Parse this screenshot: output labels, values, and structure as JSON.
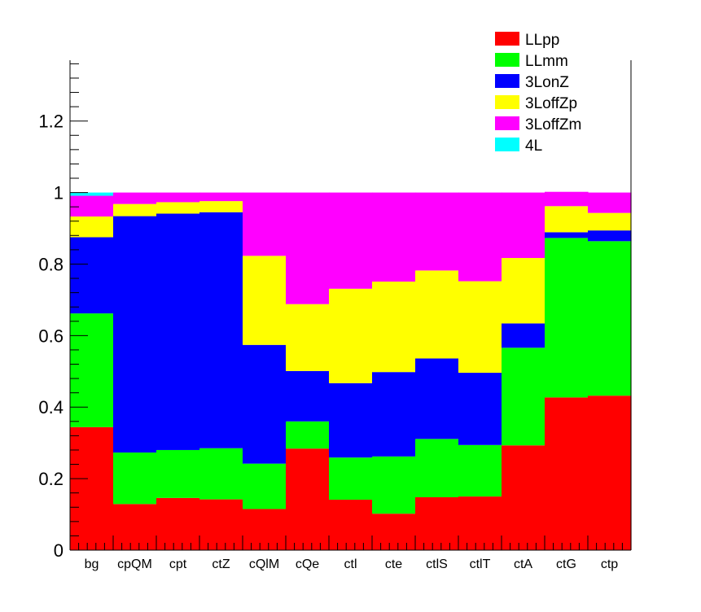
{
  "chart_data": {
    "type": "bar",
    "stacked": true,
    "categories": [
      "bg",
      "cpQM",
      "cpt",
      "ctZ",
      "cQlM",
      "cQe",
      "ctl",
      "cte",
      "ctlS",
      "ctlT",
      "ctA",
      "ctG",
      "ctp"
    ],
    "series": [
      {
        "name": "LLpp",
        "color": "#ff0000",
        "values": [
          0.344,
          0.129,
          0.146,
          0.142,
          0.115,
          0.284,
          0.141,
          0.102,
          0.148,
          0.15,
          0.293,
          0.427,
          0.432
        ]
      },
      {
        "name": "LLmm",
        "color": "#00ff00",
        "values": [
          0.318,
          0.144,
          0.134,
          0.143,
          0.127,
          0.076,
          0.118,
          0.16,
          0.163,
          0.144,
          0.273,
          0.446,
          0.432
        ]
      },
      {
        "name": "3LonZ",
        "color": "#0000ff",
        "values": [
          0.213,
          0.661,
          0.661,
          0.66,
          0.332,
          0.141,
          0.208,
          0.236,
          0.225,
          0.202,
          0.068,
          0.016,
          0.03
        ]
      },
      {
        "name": "3LoffZp",
        "color": "#ffff00",
        "values": [
          0.058,
          0.034,
          0.032,
          0.031,
          0.249,
          0.187,
          0.264,
          0.253,
          0.246,
          0.256,
          0.183,
          0.073,
          0.049
        ]
      },
      {
        "name": "3LoffZm",
        "color": "#ff00ff",
        "values": [
          0.058,
          0.032,
          0.027,
          0.024,
          0.177,
          0.312,
          0.269,
          0.249,
          0.218,
          0.248,
          0.183,
          0.04,
          0.057
        ]
      },
      {
        "name": "4L",
        "color": "#00ffff",
        "values": [
          0.009,
          0.0,
          0.0,
          0.0,
          0.0,
          0.0,
          0.0,
          0.0,
          0.0,
          0.0,
          0.0,
          0.0,
          0.0
        ]
      }
    ],
    "ylim": [
      0,
      1.37
    ],
    "y_ticks": [
      "0",
      "0.2",
      "0.4",
      "0.6",
      "0.8",
      "1",
      "1.2"
    ],
    "y_tick_values": [
      0,
      0.2,
      0.4,
      0.6,
      0.8,
      1.0,
      1.2
    ],
    "title": "",
    "xlabel": "",
    "ylabel": "",
    "grid": false,
    "legend_position": "top-right"
  }
}
